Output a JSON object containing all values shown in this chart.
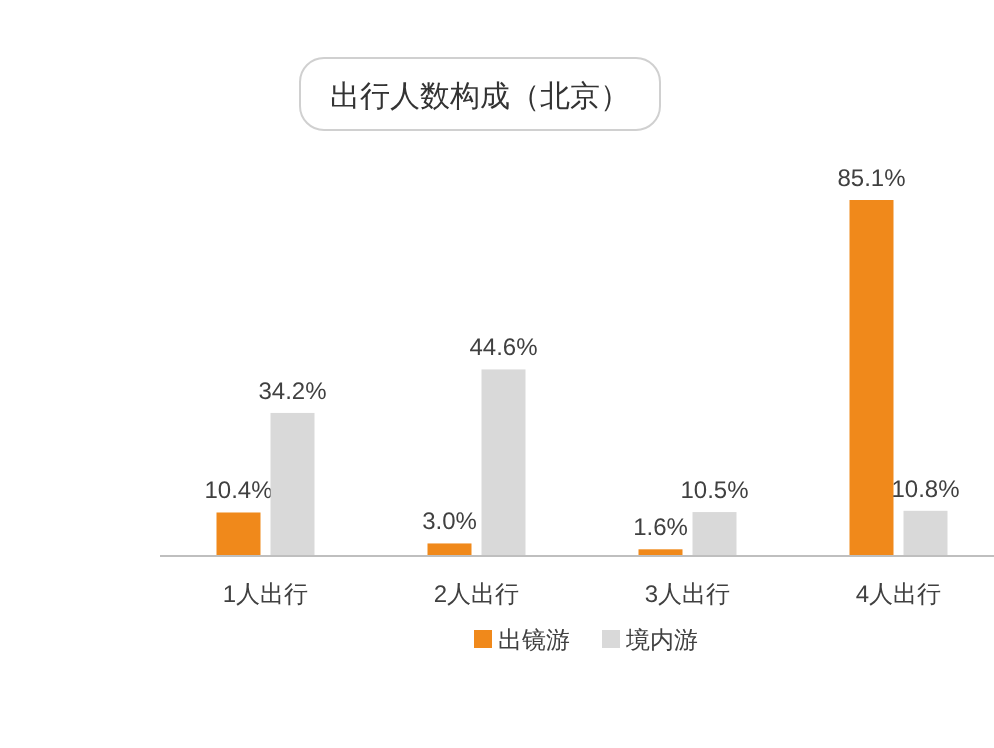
{
  "chart_data": {
    "type": "bar",
    "title": "出行人数构成（北京）",
    "categories": [
      "1人出行",
      "2人出行",
      "3人出行",
      "4人出行"
    ],
    "series": [
      {
        "name": "出镜游",
        "color": "#f0891b",
        "values": [
          10.4,
          3.0,
          1.6,
          85.1
        ],
        "value_labels": [
          "10.4%",
          "3.0%",
          "1.6%",
          "85.1%"
        ]
      },
      {
        "name": "境内游",
        "color": "#d9d9d9",
        "values": [
          34.2,
          44.6,
          10.5,
          10.8
        ],
        "value_labels": [
          "34.2%",
          "44.6%",
          "10.5%",
          "10.8%"
        ]
      }
    ],
    "legend": "bottom"
  }
}
